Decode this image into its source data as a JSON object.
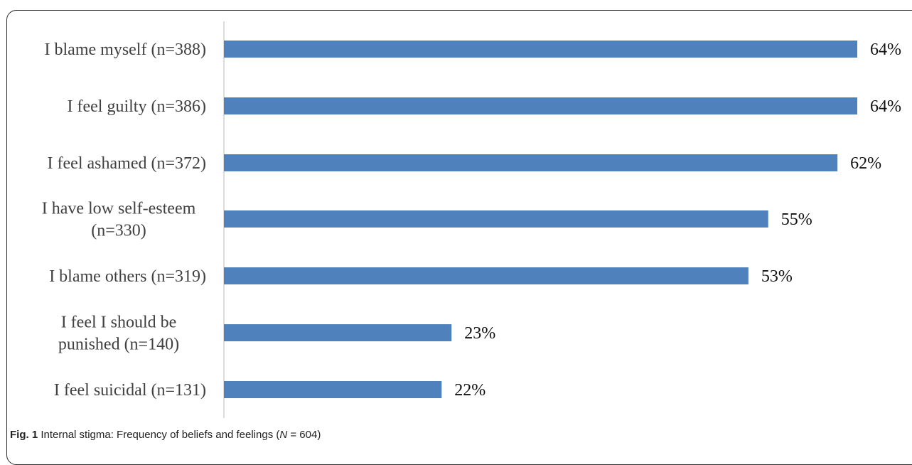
{
  "chart_data": {
    "type": "bar",
    "orientation": "horizontal",
    "categories": [
      [
        "I blame myself (n=388)"
      ],
      [
        "I feel guilty (n=386)"
      ],
      [
        "I feel ashamed (n=372)"
      ],
      [
        "I have low self-esteem",
        "(n=330)"
      ],
      [
        "I blame others (n=319)"
      ],
      [
        "I feel I should be",
        "punished (n=140)"
      ],
      [
        "I feel suicidal (n=131)"
      ]
    ],
    "values": [
      64,
      64,
      62,
      55,
      53,
      23,
      22
    ],
    "value_labels": [
      "64%",
      "64%",
      "62%",
      "55%",
      "53%",
      "23%",
      "22%"
    ],
    "xlim": [
      0,
      64
    ],
    "bar_color": "#4f81bd",
    "grid": false
  },
  "caption": {
    "fig_label": "Fig. 1",
    "text_before": "Internal stigma: Frequency of beliefs and feelings (",
    "n_symbol": "N",
    "text_after": " = 604)"
  }
}
